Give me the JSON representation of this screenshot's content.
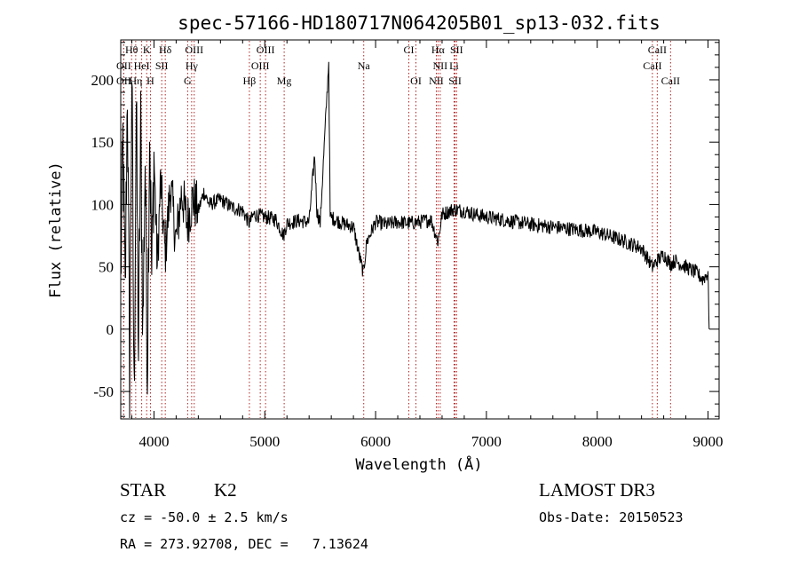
{
  "chart_data": {
    "type": "line",
    "title": "spec-57166-HD180717N064205B01_sp13-032.fits",
    "xlabel": "Wavelength (Å)",
    "ylabel": "Flux (relative)",
    "xlim": [
      3700,
      9100
    ],
    "ylim": [
      -72,
      232
    ],
    "xticks": [
      4000,
      5000,
      6000,
      7000,
      8000,
      9000
    ],
    "yticks": [
      -50,
      0,
      50,
      100,
      150,
      200
    ],
    "spectrum_anchors": [
      [
        3700,
        40
      ],
      [
        3720,
        150
      ],
      [
        3740,
        20
      ],
      [
        3760,
        200
      ],
      [
        3780,
        -40
      ],
      [
        3800,
        210
      ],
      [
        3820,
        -60
      ],
      [
        3840,
        180
      ],
      [
        3860,
        -20
      ],
      [
        3880,
        160
      ],
      [
        3900,
        0
      ],
      [
        3920,
        140
      ],
      [
        3940,
        -30
      ],
      [
        3960,
        170
      ],
      [
        3980,
        40
      ],
      [
        4000,
        140
      ],
      [
        4030,
        50
      ],
      [
        4060,
        120
      ],
      [
        4100,
        60
      ],
      [
        4150,
        115
      ],
      [
        4200,
        70
      ],
      [
        4250,
        110
      ],
      [
        4300,
        85
      ],
      [
        4350,
        105
      ],
      [
        4400,
        95
      ],
      [
        4450,
        110
      ],
      [
        4500,
        100
      ],
      [
        4600,
        104
      ],
      [
        4700,
        98
      ],
      [
        4800,
        95
      ],
      [
        4860,
        85
      ],
      [
        4900,
        92
      ],
      [
        5000,
        90
      ],
      [
        5100,
        88
      ],
      [
        5170,
        75
      ],
      [
        5200,
        85
      ],
      [
        5300,
        87
      ],
      [
        5400,
        86
      ],
      [
        5450,
        140
      ],
      [
        5470,
        95
      ],
      [
        5500,
        85
      ],
      [
        5577,
        215
      ],
      [
        5590,
        90
      ],
      [
        5700,
        85
      ],
      [
        5800,
        82
      ],
      [
        5850,
        60
      ],
      [
        5890,
        45
      ],
      [
        5920,
        70
      ],
      [
        6000,
        86
      ],
      [
        6100,
        84
      ],
      [
        6200,
        86
      ],
      [
        6300,
        85
      ],
      [
        6400,
        86
      ],
      [
        6500,
        88
      ],
      [
        6563,
        70
      ],
      [
        6600,
        92
      ],
      [
        6700,
        96
      ],
      [
        6800,
        95
      ],
      [
        6900,
        92
      ],
      [
        7000,
        90
      ],
      [
        7200,
        87
      ],
      [
        7400,
        84
      ],
      [
        7600,
        82
      ],
      [
        7800,
        80
      ],
      [
        8000,
        78
      ],
      [
        8200,
        72
      ],
      [
        8400,
        65
      ],
      [
        8498,
        50
      ],
      [
        8542,
        55
      ],
      [
        8600,
        60
      ],
      [
        8662,
        52
      ],
      [
        8700,
        55
      ],
      [
        8800,
        50
      ],
      [
        8900,
        45
      ],
      [
        8950,
        40
      ],
      [
        9000,
        45
      ],
      [
        9010,
        0
      ]
    ],
    "spectral_lines": [
      {
        "label": "Hθ",
        "wavelength": 3798,
        "row": 0
      },
      {
        "label": "K",
        "wavelength": 3934,
        "row": 0
      },
      {
        "label": "Hδ",
        "wavelength": 4102,
        "row": 0
      },
      {
        "label": "OIII",
        "wavelength": 4363,
        "row": 0
      },
      {
        "label": "OIII",
        "wavelength": 5007,
        "row": 0
      },
      {
        "label": "CI",
        "wavelength": 6300,
        "row": 0
      },
      {
        "label": "Hα",
        "wavelength": 6563,
        "row": 0
      },
      {
        "label": "SII",
        "wavelength": 6731,
        "row": 0
      },
      {
        "label": "CaII",
        "wavelength": 8542,
        "row": 0
      },
      {
        "label": "OII",
        "wavelength": 3727,
        "row": 1
      },
      {
        "label": "HeI",
        "wavelength": 3889,
        "row": 1
      },
      {
        "label": "SII",
        "wavelength": 4070,
        "row": 1
      },
      {
        "label": "Hγ",
        "wavelength": 4340,
        "row": 1
      },
      {
        "label": "OIII",
        "wavelength": 4959,
        "row": 1
      },
      {
        "label": "Na",
        "wavelength": 5893,
        "row": 1
      },
      {
        "label": "NII",
        "wavelength": 6583,
        "row": 1
      },
      {
        "label": "Li",
        "wavelength": 6708,
        "row": 1
      },
      {
        "label": "CaII",
        "wavelength": 8498,
        "row": 1
      },
      {
        "label": "OII",
        "wavelength": 3727,
        "row": 2
      },
      {
        "label": "Hη",
        "wavelength": 3835,
        "row": 2
      },
      {
        "label": "H",
        "wavelength": 3968,
        "row": 2
      },
      {
        "label": "G",
        "wavelength": 4304,
        "row": 2
      },
      {
        "label": "Hβ",
        "wavelength": 4861,
        "row": 2
      },
      {
        "label": "Mg",
        "wavelength": 5175,
        "row": 2
      },
      {
        "label": "OI",
        "wavelength": 6364,
        "row": 2
      },
      {
        "label": "NII",
        "wavelength": 6548,
        "row": 2
      },
      {
        "label": "SII",
        "wavelength": 6717,
        "row": 2
      },
      {
        "label": "CaII",
        "wavelength": 8662,
        "row": 2
      }
    ],
    "line_marker_color": "#b22222"
  },
  "info": {
    "object_class": "STAR",
    "subclass": "K2",
    "survey": "LAMOST DR3",
    "redshift": "cz = -50.0 ± 2.5 km/s",
    "obs_date": "Obs-Date: 20150523",
    "coords": "RA = 273.92708, DEC =   7.13624"
  }
}
